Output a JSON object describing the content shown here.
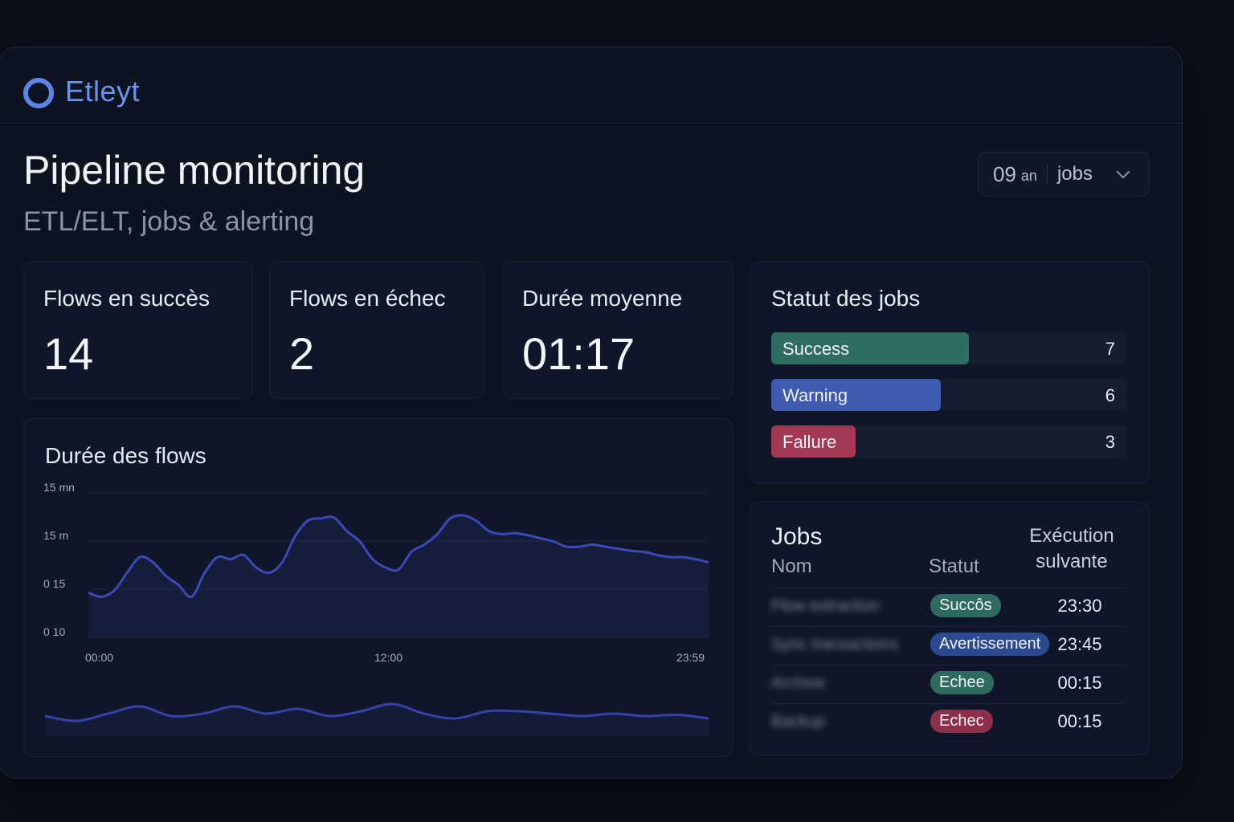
{
  "app": {
    "brand": "Etleyt"
  },
  "header": {
    "title": "Pipeline monitoring",
    "subtitle": "ETL/ELT, jobs & alerting",
    "selector": {
      "value": "09",
      "unit": "an",
      "mode": "jobs"
    }
  },
  "kpis": [
    {
      "label": "Flows en succès",
      "value": "14"
    },
    {
      "label": "Flows en échec",
      "value": "2"
    },
    {
      "label": "Durée moyenne",
      "value": "01:17"
    }
  ],
  "job_status": {
    "title": "Statut des jobs",
    "max": 7,
    "bars": [
      {
        "label": "Success",
        "count": 7,
        "color": "#2f6d61"
      },
      {
        "label": "Warning",
        "count": 6,
        "color": "#3f5bb0"
      },
      {
        "label": "Fallure",
        "count": 3,
        "color": "#a23a55"
      }
    ]
  },
  "jobs_table": {
    "title": "Jobs",
    "col_name": "Nom",
    "col_status": "Statut",
    "col_next": "Exécution sulvante",
    "rows": [
      {
        "name": "Flow extraction",
        "status": "Succôs",
        "next": "23:30"
      },
      {
        "name": "Sync transactions",
        "status": "Avertissement",
        "next": "23:45"
      },
      {
        "name": "Archive",
        "status": "Echee",
        "next": "00:15"
      },
      {
        "name": "Backup",
        "status": "Echec",
        "next": "00:15"
      }
    ]
  },
  "chart_data": {
    "type": "line",
    "title": "Durée des flows",
    "y_tick_labels": [
      "15 mn",
      "15 m",
      "0 15",
      "0 10"
    ],
    "x_tick_labels": [
      "00:00",
      "12:00",
      "23:59"
    ],
    "x": [
      0,
      0.5,
      1,
      1.5,
      2,
      2.5,
      3,
      3.5,
      4,
      4.5,
      5,
      5.5,
      6,
      6.5,
      7,
      7.5,
      8,
      8.5,
      9,
      9.5,
      10,
      10.5,
      11,
      11.5,
      12,
      12.5,
      13,
      13.5,
      14,
      14.5,
      15,
      15.5,
      16,
      16.5,
      17,
      17.5,
      18,
      18.5,
      19,
      19.5,
      20,
      20.5,
      21,
      21.5,
      22,
      22.5,
      23,
      23.5,
      24
    ],
    "values": [
      0.26,
      0.22,
      0.28,
      0.45,
      0.6,
      0.55,
      0.42,
      0.33,
      0.22,
      0.45,
      0.6,
      0.58,
      0.62,
      0.5,
      0.45,
      0.55,
      0.8,
      0.95,
      0.97,
      0.98,
      0.85,
      0.75,
      0.58,
      0.5,
      0.48,
      0.65,
      0.72,
      0.82,
      0.97,
      1.0,
      0.95,
      0.85,
      0.82,
      0.83,
      0.81,
      0.78,
      0.75,
      0.7,
      0.7,
      0.72,
      0.7,
      0.68,
      0.66,
      0.65,
      0.62,
      0.6,
      0.6,
      0.58,
      0.55
    ],
    "overview_values": [
      0.4,
      0.2,
      0.5,
      0.8,
      0.4,
      0.5,
      0.8,
      0.5,
      0.7,
      0.4,
      0.6,
      0.9,
      0.5,
      0.3,
      0.6,
      0.6,
      0.5,
      0.4,
      0.5,
      0.4,
      0.45,
      0.3
    ]
  }
}
